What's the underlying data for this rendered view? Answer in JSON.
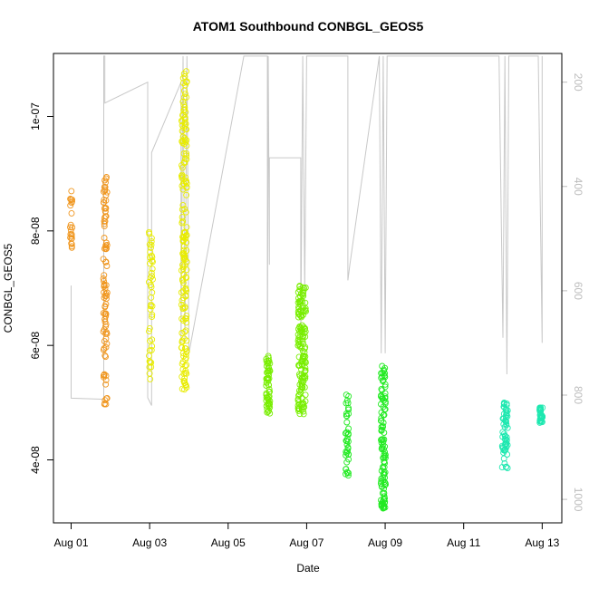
{
  "chart_data": {
    "type": "scatter",
    "title": "ATOM1 Southbound CONBGL_GEOS5",
    "xlabel": "Date",
    "ylabel": "CONBGL_GEOS5",
    "x_ticks": [
      "Aug 01",
      "Aug 03",
      "Aug 05",
      "Aug 07",
      "Aug 09",
      "Aug 11",
      "Aug 13"
    ],
    "x_tick_day": [
      1,
      3,
      5,
      7,
      9,
      11,
      13
    ],
    "xlim_day": [
      0.55,
      13.5
    ],
    "y_ticks": [
      "4e-08",
      "6e-08",
      "8e-08",
      "1e-07"
    ],
    "y_tick_values": [
      4e-08,
      6e-08,
      8e-08,
      1e-07
    ],
    "ylim": [
      2.9e-08,
      1.11e-07
    ],
    "y2_ticks": [
      "200",
      "400",
      "600",
      "800",
      "1000"
    ],
    "y2_tick_values": [
      200,
      400,
      600,
      800,
      1000
    ],
    "y2lim": [
      1045,
      145
    ],
    "y2_reversed": true,
    "marker": "open-circle",
    "grid": false,
    "legend": "none",
    "series": [
      {
        "color": "#f0961e",
        "clusters": [
          {
            "day": 1.0,
            "jit": 0.03,
            "ymin": 7.5e-08,
            "ymax": 8.7e-08,
            "n": 22
          },
          {
            "day": 1.87,
            "jit": 0.05,
            "ymin": 4.95e-08,
            "ymax": 8.95e-08,
            "n": 95
          }
        ]
      },
      {
        "color": "#e8ec00",
        "clusters": [
          {
            "day": 3.03,
            "jit": 0.05,
            "ymin": 5.4e-08,
            "ymax": 8e-08,
            "n": 45
          },
          {
            "day": 3.88,
            "jit": 0.07,
            "ymin": 5.2e-08,
            "ymax": 1.08e-07,
            "n": 170
          }
        ]
      },
      {
        "color": "#78ee00",
        "clusters": [
          {
            "day": 6.02,
            "jit": 0.05,
            "ymin": 4.8e-08,
            "ymax": 5.85e-08,
            "n": 55
          },
          {
            "day": 6.88,
            "jit": 0.1,
            "ymin": 4.8e-08,
            "ymax": 7.1e-08,
            "n": 150
          }
        ]
      },
      {
        "color": "#22ea22",
        "clusters": [
          {
            "day": 8.03,
            "jit": 0.04,
            "ymin": 3.65e-08,
            "ymax": 5.2e-08,
            "n": 40
          },
          {
            "day": 8.95,
            "jit": 0.06,
            "ymin": 3.15e-08,
            "ymax": 5.65e-08,
            "n": 110
          }
        ]
      },
      {
        "color": "#1ee8b0",
        "clusters": [
          {
            "day": 12.05,
            "jit": 0.07,
            "ymin": 3.85e-08,
            "ymax": 5.1e-08,
            "n": 60
          },
          {
            "day": 12.97,
            "jit": 0.04,
            "ymin": 4.65e-08,
            "ymax": 4.95e-08,
            "n": 35
          }
        ]
      }
    ],
    "pressure_track": {
      "color": "#c8c8c8",
      "points": [
        [
          1.0,
          590
        ],
        [
          1.0,
          806
        ],
        [
          1.83,
          808
        ],
        [
          1.83,
          150
        ],
        [
          1.86,
          150
        ],
        [
          1.86,
          240
        ],
        [
          2.95,
          200
        ],
        [
          2.95,
          805
        ],
        [
          3.05,
          820
        ],
        [
          3.05,
          335
        ],
        [
          3.8,
          200
        ],
        [
          3.8,
          700
        ],
        [
          3.85,
          150
        ],
        [
          3.9,
          700
        ],
        [
          3.95,
          150
        ],
        [
          4.0,
          720
        ],
        [
          5.4,
          150
        ],
        [
          6.0,
          150
        ],
        [
          6.0,
          750
        ],
        [
          6.02,
          150
        ],
        [
          6.05,
          550
        ],
        [
          6.05,
          345
        ],
        [
          6.85,
          345
        ],
        [
          6.85,
          700
        ],
        [
          6.9,
          150
        ],
        [
          6.95,
          600
        ],
        [
          7.0,
          150
        ],
        [
          7.05,
          150
        ],
        [
          7.1,
          150
        ],
        [
          7.15,
          150
        ],
        [
          7.9,
          150
        ],
        [
          8.05,
          150
        ],
        [
          8.05,
          580
        ],
        [
          8.1,
          550
        ],
        [
          8.85,
          150
        ],
        [
          8.9,
          720
        ],
        [
          8.95,
          150
        ],
        [
          9.0,
          720
        ],
        [
          9.05,
          150
        ],
        [
          11.0,
          150
        ],
        [
          11.9,
          150
        ],
        [
          12.0,
          690
        ],
        [
          12.05,
          150
        ],
        [
          12.1,
          760
        ],
        [
          12.15,
          150
        ],
        [
          12.9,
          150
        ],
        [
          13.0,
          700
        ],
        [
          13.0,
          150
        ]
      ]
    }
  }
}
